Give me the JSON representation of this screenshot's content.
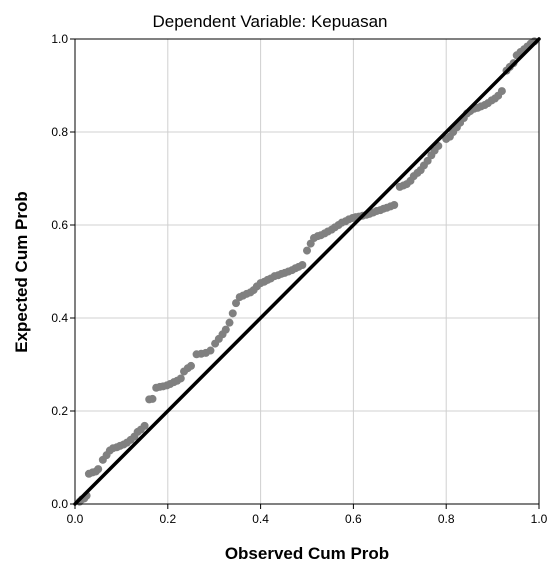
{
  "chart_data": {
    "type": "scatter",
    "title": "Dependent Variable: Kepuasan",
    "xlabel": "Observed Cum Prob",
    "ylabel": "Expected Cum Prob",
    "xlim": [
      0,
      1
    ],
    "ylim": [
      0,
      1
    ],
    "xticks": [
      "0.0",
      "0.2",
      "0.4",
      "0.6",
      "0.8",
      "1.0"
    ],
    "yticks": [
      "0.0",
      "0.2",
      "0.4",
      "0.6",
      "0.8",
      "1.0"
    ],
    "grid": true,
    "reference_line": {
      "from": [
        0,
        0
      ],
      "to": [
        1,
        1
      ]
    },
    "colors": {
      "points": "#808080",
      "reference_line": "#000000",
      "grid": "#d0d0d0",
      "frame": "#000000"
    },
    "points": [
      [
        0.01,
        0.005
      ],
      [
        0.015,
        0.01
      ],
      [
        0.02,
        0.012
      ],
      [
        0.025,
        0.018
      ],
      [
        0.03,
        0.065
      ],
      [
        0.038,
        0.068
      ],
      [
        0.045,
        0.07
      ],
      [
        0.05,
        0.075
      ],
      [
        0.06,
        0.095
      ],
      [
        0.068,
        0.105
      ],
      [
        0.075,
        0.115
      ],
      [
        0.082,
        0.12
      ],
      [
        0.09,
        0.122
      ],
      [
        0.097,
        0.125
      ],
      [
        0.105,
        0.128
      ],
      [
        0.112,
        0.132
      ],
      [
        0.12,
        0.138
      ],
      [
        0.128,
        0.145
      ],
      [
        0.135,
        0.155
      ],
      [
        0.142,
        0.16
      ],
      [
        0.15,
        0.168
      ],
      [
        0.16,
        0.225
      ],
      [
        0.167,
        0.226
      ],
      [
        0.175,
        0.25
      ],
      [
        0.183,
        0.252
      ],
      [
        0.19,
        0.253
      ],
      [
        0.198,
        0.255
      ],
      [
        0.205,
        0.258
      ],
      [
        0.213,
        0.262
      ],
      [
        0.22,
        0.265
      ],
      [
        0.228,
        0.27
      ],
      [
        0.235,
        0.285
      ],
      [
        0.243,
        0.292
      ],
      [
        0.25,
        0.297
      ],
      [
        0.262,
        0.322
      ],
      [
        0.272,
        0.323
      ],
      [
        0.282,
        0.325
      ],
      [
        0.292,
        0.33
      ],
      [
        0.302,
        0.345
      ],
      [
        0.31,
        0.355
      ],
      [
        0.318,
        0.365
      ],
      [
        0.325,
        0.375
      ],
      [
        0.333,
        0.39
      ],
      [
        0.34,
        0.41
      ],
      [
        0.347,
        0.432
      ],
      [
        0.355,
        0.445
      ],
      [
        0.362,
        0.448
      ],
      [
        0.37,
        0.452
      ],
      [
        0.378,
        0.455
      ],
      [
        0.385,
        0.46
      ],
      [
        0.392,
        0.468
      ],
      [
        0.4,
        0.475
      ],
      [
        0.408,
        0.478
      ],
      [
        0.415,
        0.482
      ],
      [
        0.422,
        0.485
      ],
      [
        0.43,
        0.49
      ],
      [
        0.438,
        0.492
      ],
      [
        0.445,
        0.495
      ],
      [
        0.452,
        0.497
      ],
      [
        0.46,
        0.5
      ],
      [
        0.468,
        0.503
      ],
      [
        0.475,
        0.507
      ],
      [
        0.482,
        0.51
      ],
      [
        0.49,
        0.514
      ],
      [
        0.5,
        0.545
      ],
      [
        0.508,
        0.56
      ],
      [
        0.515,
        0.572
      ],
      [
        0.523,
        0.576
      ],
      [
        0.53,
        0.578
      ],
      [
        0.538,
        0.582
      ],
      [
        0.545,
        0.586
      ],
      [
        0.553,
        0.59
      ],
      [
        0.56,
        0.595
      ],
      [
        0.568,
        0.6
      ],
      [
        0.575,
        0.605
      ],
      [
        0.583,
        0.608
      ],
      [
        0.59,
        0.612
      ],
      [
        0.598,
        0.615
      ],
      [
        0.605,
        0.617
      ],
      [
        0.612,
        0.618
      ],
      [
        0.62,
        0.62
      ],
      [
        0.628,
        0.622
      ],
      [
        0.635,
        0.624
      ],
      [
        0.643,
        0.627
      ],
      [
        0.65,
        0.63
      ],
      [
        0.658,
        0.632
      ],
      [
        0.665,
        0.635
      ],
      [
        0.672,
        0.637
      ],
      [
        0.68,
        0.64
      ],
      [
        0.688,
        0.643
      ],
      [
        0.7,
        0.682
      ],
      [
        0.708,
        0.685
      ],
      [
        0.715,
        0.688
      ],
      [
        0.723,
        0.695
      ],
      [
        0.73,
        0.705
      ],
      [
        0.738,
        0.712
      ],
      [
        0.745,
        0.718
      ],
      [
        0.752,
        0.728
      ],
      [
        0.76,
        0.738
      ],
      [
        0.768,
        0.75
      ],
      [
        0.775,
        0.76
      ],
      [
        0.783,
        0.77
      ],
      [
        0.8,
        0.785
      ],
      [
        0.808,
        0.79
      ],
      [
        0.815,
        0.8
      ],
      [
        0.823,
        0.81
      ],
      [
        0.83,
        0.82
      ],
      [
        0.838,
        0.83
      ],
      [
        0.845,
        0.84
      ],
      [
        0.852,
        0.845
      ],
      [
        0.86,
        0.85
      ],
      [
        0.868,
        0.852
      ],
      [
        0.875,
        0.855
      ],
      [
        0.883,
        0.858
      ],
      [
        0.89,
        0.862
      ],
      [
        0.898,
        0.868
      ],
      [
        0.905,
        0.872
      ],
      [
        0.912,
        0.878
      ],
      [
        0.92,
        0.888
      ],
      [
        0.93,
        0.932
      ],
      [
        0.937,
        0.94
      ],
      [
        0.945,
        0.948
      ],
      [
        0.952,
        0.965
      ],
      [
        0.96,
        0.972
      ],
      [
        0.968,
        0.978
      ],
      [
        0.975,
        0.984
      ],
      [
        0.982,
        0.99
      ],
      [
        0.99,
        0.995
      ]
    ]
  }
}
